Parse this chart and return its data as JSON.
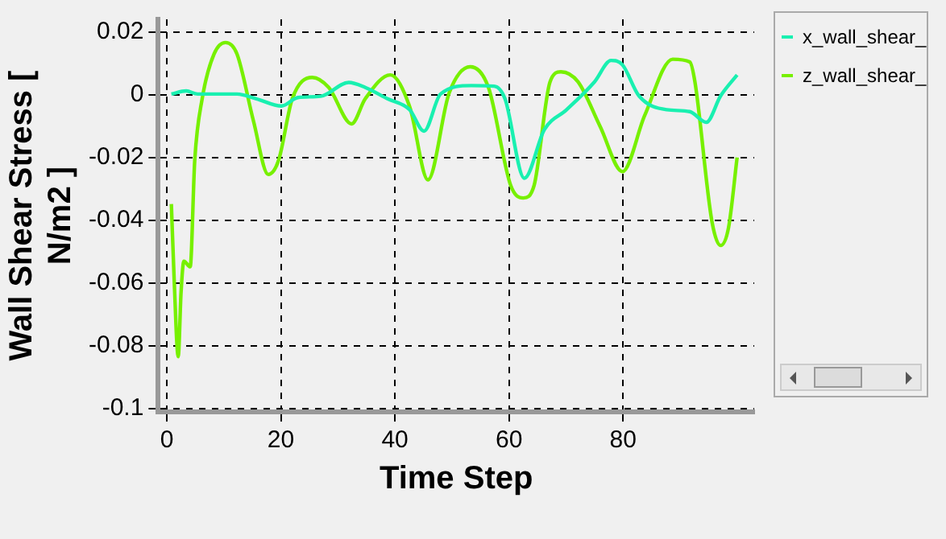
{
  "chart_data": {
    "type": "line",
    "xlabel": "Time Step",
    "ylabel": "Wall Shear Stress [ N/m2 ]",
    "xlim": [
      -1.5,
      103
    ],
    "ylim": [
      -0.101,
      0.024
    ],
    "xticks": [
      0,
      20,
      40,
      60,
      80
    ],
    "yticks": [
      -0.1,
      -0.08,
      -0.06,
      -0.04,
      -0.02,
      0,
      0.02
    ],
    "grid": true,
    "legend": "right",
    "marker": "none",
    "line_style": "solid",
    "series": [
      {
        "name": "x_wall_shear_",
        "color": "#19f0b0",
        "x": [
          0.8,
          3.4,
          5.4,
          12.3,
          15.7,
          20.1,
          23,
          27,
          31.9,
          34.8,
          38.7,
          42.6,
          45.1,
          48,
          53.4,
          57.4,
          59.3,
          62.7,
          66.2,
          70.1,
          75,
          77.9,
          79.9,
          82.8,
          87.7,
          91.7,
          94.6,
          97.1,
          100
        ],
        "values": [
          0.0002,
          0.0012,
          0.0002,
          0.0002,
          -0.0013,
          -0.0036,
          -0.0009,
          -0.0005,
          0.0039,
          0.0023,
          -0.0013,
          -0.0048,
          -0.0116,
          0.0002,
          0.0029,
          0.0027,
          -0.0013,
          -0.0266,
          -0.0111,
          -0.0048,
          0.0041,
          0.0109,
          0.0095,
          -0.0004,
          -0.0048,
          -0.0054,
          -0.0088,
          -0.0004,
          0.0063
        ]
      },
      {
        "name": "z_wall_shear_",
        "color": "#77f000",
        "x": [
          0.8,
          1.3,
          2,
          2.5,
          3,
          4.1,
          4.9,
          6.2,
          8.3,
          10.3,
          12.3,
          15.2,
          17.8,
          19.6,
          22,
          25.5,
          28.4,
          32.4,
          34.8,
          39.2,
          42.6,
          45.8,
          49.5,
          53.2,
          56.4,
          60.3,
          62.5,
          64.4,
          67.2,
          69.1,
          72.1,
          76,
          79.9,
          83.8,
          88.7,
          91.7,
          92.6,
          95.6,
          97.1,
          98.5,
          100
        ],
        "values": [
          -0.0348,
          -0.0593,
          -0.0834,
          -0.0629,
          -0.053,
          -0.0548,
          -0.0209,
          -0.0013,
          0.013,
          0.0166,
          0.013,
          -0.0084,
          -0.0254,
          -0.0209,
          -0.0013,
          0.0055,
          0.0023,
          -0.0093,
          -0.0013,
          0.0063,
          -0.0039,
          -0.0271,
          0.0005,
          0.0089,
          0.0023,
          -0.0289,
          -0.0329,
          -0.0289,
          0.0041,
          0.0073,
          0.0041,
          -0.0102,
          -0.0245,
          -0.0066,
          0.0113,
          0.0104,
          0.0041,
          -0.0405,
          -0.048,
          -0.0423,
          -0.02
        ]
      }
    ]
  }
}
